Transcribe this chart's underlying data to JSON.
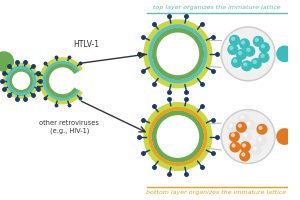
{
  "bg_color": "#ffffff",
  "top_label": "top layer organizes the immature lattice",
  "bottom_label": "bottom layer organizes the immature lattice",
  "top_label_color": "#5bbfbf",
  "bottom_label_color": "#e8a020",
  "htlv_label": "HTLV-1",
  "other_label": "other retroviruses\n(e.g., HIV-1)",
  "membrane_outer_color": "#c8d840",
  "membrane_inner_color": "#6aaa50",
  "layer_top_color": "#5bbfbf",
  "layer_bottom_color": "#e8a020",
  "spike_color": "#1a3a6a",
  "teal_particle_color": "#3abcbc",
  "orange_particle_color": "#e07820",
  "white_particle_color": "#e8e8e8",
  "line_color": "#aaaaaa",
  "arrow_color": "#333333",
  "separator_color_top": "#5bbfbf",
  "separator_color_bottom": "#e8a020"
}
